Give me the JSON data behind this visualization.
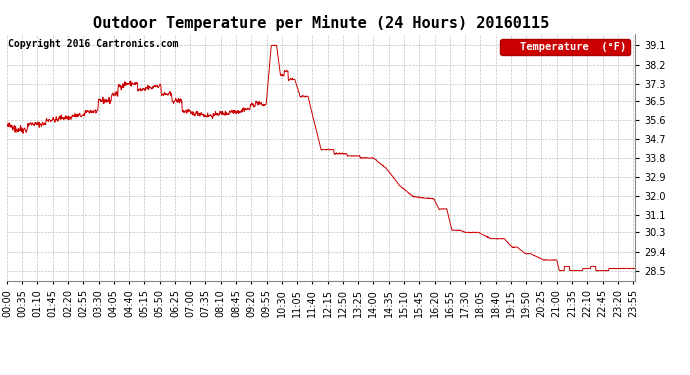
{
  "title": "Outdoor Temperature per Minute (24 Hours) 20160115",
  "copyright": "Copyright 2016 Cartronics.com",
  "legend_label": "Temperature  (°F)",
  "line_color": "#cc0000",
  "legend_bg": "#cc0000",
  "legend_text_color": "#ffffff",
  "background_color": "#ffffff",
  "plot_bg": "#ffffff",
  "grid_color": "#bbbbbb",
  "ylim": [
    28.0,
    39.65
  ],
  "yticks": [
    28.5,
    29.4,
    30.3,
    31.1,
    32.0,
    32.9,
    33.8,
    34.7,
    35.6,
    36.5,
    37.3,
    38.2,
    39.1
  ],
  "title_fontsize": 11,
  "copyright_fontsize": 7,
  "axis_fontsize": 7,
  "tick_interval_minutes": 35,
  "total_minutes": 1440,
  "seed": 42
}
